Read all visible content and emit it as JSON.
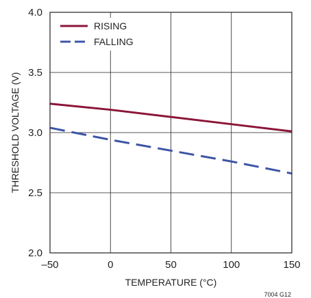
{
  "chart_data": {
    "type": "line",
    "xlabel": "TEMPERATURE (°C)",
    "ylabel": "THRESHOLD VOLTAGE (V)",
    "xlim": [
      -50,
      150
    ],
    "ylim": [
      2.0,
      4.0
    ],
    "x_ticks": [
      -50,
      0,
      50,
      100,
      150
    ],
    "x_tick_labels": [
      "–50",
      "0",
      "50",
      "100",
      "150"
    ],
    "y_ticks": [
      2.0,
      2.5,
      3.0,
      3.5,
      4.0
    ],
    "y_tick_labels": [
      "2.0",
      "2.5",
      "3.0",
      "3.5",
      "4.0"
    ],
    "grid": true,
    "legend_position": "top-left",
    "series": [
      {
        "name": "RISING",
        "color": "#8b1538",
        "style": "solid",
        "x": [
          -50,
          0,
          50,
          100,
          150
        ],
        "y": [
          3.24,
          3.19,
          3.13,
          3.07,
          3.01
        ]
      },
      {
        "name": "FALLING",
        "color": "#3e55a5",
        "style": "dashed",
        "x": [
          -50,
          0,
          50,
          100,
          150
        ],
        "y": [
          3.04,
          2.94,
          2.85,
          2.76,
          2.66
        ]
      }
    ],
    "figure_id": "7004 G12"
  }
}
